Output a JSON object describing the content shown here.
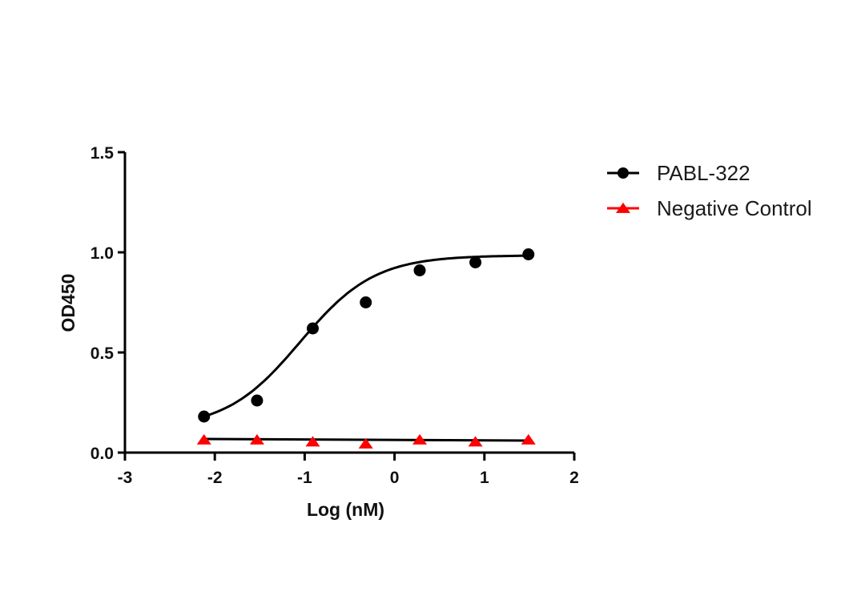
{
  "chart_data": {
    "type": "line",
    "title": "",
    "xlabel": "Log (nM)",
    "ylabel": "OD450",
    "xlim": [
      -3,
      2
    ],
    "ylim": [
      0,
      1.5
    ],
    "x_ticks": [
      -3,
      -2,
      -1,
      0,
      1,
      2
    ],
    "x_tick_labels": [
      "-3",
      "-2",
      "-1",
      "0",
      "1",
      "2"
    ],
    "y_ticks": [
      0.0,
      0.5,
      1.0,
      1.5
    ],
    "y_tick_labels": [
      "0.0",
      "0.5",
      "1.0",
      "1.5"
    ],
    "grid": false,
    "legend_position": "right-top-outside",
    "series": [
      {
        "name": "PABL-322",
        "color": "#000000",
        "marker": "circle",
        "fit": "sigmoidal",
        "x": [
          -2.12,
          -1.53,
          -0.91,
          -0.32,
          0.28,
          0.9,
          1.49
        ],
        "values": [
          0.18,
          0.26,
          0.62,
          0.75,
          0.91,
          0.95,
          0.99
        ]
      },
      {
        "name": "Negative Control",
        "color": "#ff0000",
        "marker": "triangle",
        "fit": "flat",
        "x": [
          -2.12,
          -1.53,
          -0.91,
          -0.32,
          0.28,
          0.9,
          1.49
        ],
        "values": [
          0.06,
          0.06,
          0.05,
          0.04,
          0.06,
          0.05,
          0.06
        ]
      }
    ],
    "fit_curve": {
      "PABL-322": {
        "bottom": 0.12,
        "top": 0.985,
        "logEC50": -1.05,
        "hill": 1.05
      },
      "Negative Control": {
        "level": 0.064
      }
    }
  }
}
